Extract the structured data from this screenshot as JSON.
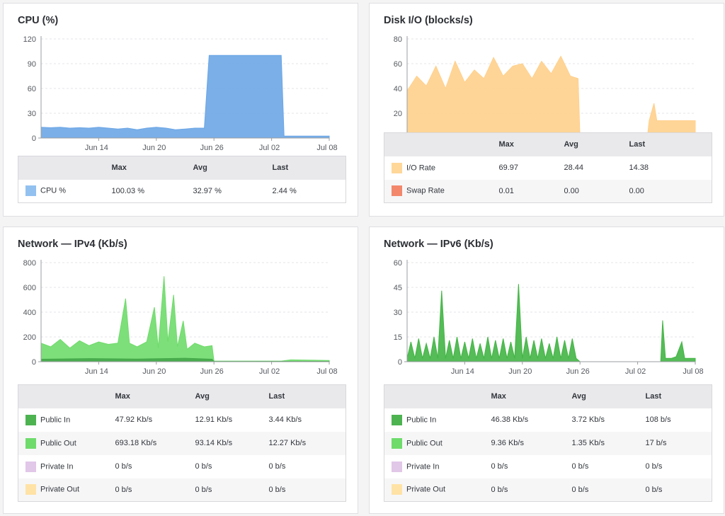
{
  "panels": {
    "cpu": {
      "title": "CPU (%)",
      "table": {
        "headers": [
          "Max",
          "Avg",
          "Last"
        ],
        "rows": [
          {
            "label": "CPU %",
            "color": "#92c1f0",
            "max": "100.03 %",
            "avg": "32.97 %",
            "last": "2.44 %"
          }
        ]
      }
    },
    "disk": {
      "title": "Disk I/O (blocks/s)",
      "table": {
        "headers": [
          "Max",
          "Avg",
          "Last"
        ],
        "rows": [
          {
            "label": "I/O Rate",
            "color": "#ffd799",
            "max": "69.97",
            "avg": "28.44",
            "last": "14.38"
          },
          {
            "label": "Swap Rate",
            "color": "#f2876c",
            "max": "0.01",
            "avg": "0.00",
            "last": "0.00"
          }
        ]
      }
    },
    "ipv4": {
      "title": "Network — IPv4 (Kb/s)",
      "table": {
        "headers": [
          "Max",
          "Avg",
          "Last"
        ],
        "rows": [
          {
            "label": "Public In",
            "color": "#4db351",
            "max": "47.92 Kb/s",
            "avg": "12.91 Kb/s",
            "last": "3.44 Kb/s"
          },
          {
            "label": "Public Out",
            "color": "#6fdb6b",
            "max": "693.18 Kb/s",
            "avg": "93.14 Kb/s",
            "last": "12.27 Kb/s"
          },
          {
            "label": "Private In",
            "color": "#e1c7e8",
            "max": "0 b/s",
            "avg": "0 b/s",
            "last": "0 b/s"
          },
          {
            "label": "Private Out",
            "color": "#ffe3a6",
            "max": "0 b/s",
            "avg": "0 b/s",
            "last": "0 b/s"
          }
        ]
      }
    },
    "ipv6": {
      "title": "Network — IPv6 (Kb/s)",
      "table": {
        "headers": [
          "Max",
          "Avg",
          "Last"
        ],
        "rows": [
          {
            "label": "Public In",
            "color": "#4db351",
            "max": "46.38 Kb/s",
            "avg": "3.72 Kb/s",
            "last": "108 b/s"
          },
          {
            "label": "Public Out",
            "color": "#6fdb6b",
            "max": "9.36 Kb/s",
            "avg": "1.35 Kb/s",
            "last": "17 b/s"
          },
          {
            "label": "Private In",
            "color": "#e1c7e8",
            "max": "0 b/s",
            "avg": "0 b/s",
            "last": "0 b/s"
          },
          {
            "label": "Private Out",
            "color": "#ffe3a6",
            "max": "0 b/s",
            "avg": "0 b/s",
            "last": "0 b/s"
          }
        ]
      }
    }
  },
  "chart_data": [
    {
      "id": "cpu",
      "type": "area",
      "title": "CPU (%)",
      "x_ticks": [
        "Jun 14",
        "Jun 20",
        "Jun 26",
        "Jul 02",
        "Jul 08"
      ],
      "y_ticks": [
        0,
        30,
        60,
        90,
        120
      ],
      "ylim": [
        0,
        120
      ],
      "xlim_days": [
        0,
        30
      ],
      "grid": true,
      "series": [
        {
          "name": "CPU %",
          "color": "#6ba6e6",
          "points": [
            [
              0,
              13
            ],
            [
              1,
              12.5
            ],
            [
              2,
              13
            ],
            [
              3,
              12
            ],
            [
              4,
              12.5
            ],
            [
              5,
              12
            ],
            [
              6,
              13
            ],
            [
              7,
              12
            ],
            [
              8,
              11
            ],
            [
              9,
              12
            ],
            [
              10,
              10
            ],
            [
              11,
              12
            ],
            [
              12,
              13
            ],
            [
              13,
              12
            ],
            [
              14,
              10
            ],
            [
              15,
              11
            ],
            [
              16,
              12
            ],
            [
              17,
              12
            ],
            [
              17.5,
              100
            ],
            [
              25,
              100
            ],
            [
              25.3,
              2.5
            ],
            [
              30,
              2.4
            ]
          ]
        }
      ]
    },
    {
      "id": "disk",
      "type": "area",
      "title": "Disk I/O (blocks/s)",
      "x_ticks": [
        "Jun 14",
        "Jun 20",
        "Jun 26",
        "Jul 02",
        "Jul 08"
      ],
      "y_ticks": [
        0,
        20,
        40,
        60,
        80
      ],
      "ylim": [
        0,
        80
      ],
      "xlim_days": [
        0,
        30
      ],
      "grid": true,
      "series": [
        {
          "name": "I/O Rate",
          "color": "#ffd08c",
          "points": [
            [
              0,
              38
            ],
            [
              1,
              50
            ],
            [
              2,
              42
            ],
            [
              3,
              58
            ],
            [
              4,
              40
            ],
            [
              5,
              62
            ],
            [
              6,
              45
            ],
            [
              7,
              55
            ],
            [
              8,
              48
            ],
            [
              9,
              65
            ],
            [
              10,
              50
            ],
            [
              11,
              58
            ],
            [
              12,
              60
            ],
            [
              13,
              48
            ],
            [
              14,
              62
            ],
            [
              15,
              52
            ],
            [
              16,
              66
            ],
            [
              17,
              50
            ],
            [
              17.8,
              48
            ],
            [
              18,
              0
            ],
            [
              25,
              0
            ],
            [
              25.2,
              14
            ],
            [
              25.7,
              28
            ],
            [
              26,
              14
            ],
            [
              30,
              14
            ]
          ]
        },
        {
          "name": "Swap Rate",
          "color": "#f2876c",
          "points": [
            [
              0,
              0
            ],
            [
              30,
              0
            ]
          ]
        }
      ]
    },
    {
      "id": "ipv4",
      "type": "area",
      "title": "Network — IPv4 (Kb/s)",
      "x_ticks": [
        "Jun 14",
        "Jun 20",
        "Jun 26",
        "Jul 02",
        "Jul 08"
      ],
      "y_ticks": [
        0,
        200,
        400,
        600,
        800
      ],
      "ylim": [
        0,
        800
      ],
      "xlim_days": [
        0,
        30
      ],
      "grid": true,
      "series": [
        {
          "name": "Public Out",
          "color": "#6fdb6b",
          "points": [
            [
              0,
              150
            ],
            [
              1,
              120
            ],
            [
              2,
              180
            ],
            [
              3,
              110
            ],
            [
              4,
              170
            ],
            [
              5,
              130
            ],
            [
              6,
              160
            ],
            [
              7,
              140
            ],
            [
              8,
              150
            ],
            [
              8.8,
              510
            ],
            [
              9.2,
              150
            ],
            [
              10,
              120
            ],
            [
              11,
              160
            ],
            [
              11.8,
              440
            ],
            [
              12.2,
              110
            ],
            [
              12.8,
              690
            ],
            [
              13.2,
              160
            ],
            [
              13.8,
              540
            ],
            [
              14.2,
              120
            ],
            [
              14.8,
              330
            ],
            [
              15.2,
              100
            ],
            [
              16,
              150
            ],
            [
              17,
              120
            ],
            [
              17.8,
              130
            ],
            [
              18,
              5
            ],
            [
              25,
              5
            ],
            [
              26,
              15
            ],
            [
              30,
              10
            ]
          ]
        },
        {
          "name": "Public In",
          "color": "#44a749",
          "points": [
            [
              0,
              20
            ],
            [
              5,
              25
            ],
            [
              10,
              22
            ],
            [
              15,
              28
            ],
            [
              17.8,
              20
            ],
            [
              18,
              2
            ],
            [
              30,
              3
            ]
          ]
        }
      ]
    },
    {
      "id": "ipv6",
      "type": "area",
      "title": "Network — IPv6 (Kb/s)",
      "x_ticks": [
        "Jun 14",
        "Jun 20",
        "Jun 26",
        "Jul 02",
        "Jul 08"
      ],
      "y_ticks": [
        0,
        15,
        30,
        45,
        60
      ],
      "ylim": [
        0,
        60
      ],
      "xlim_days": [
        0,
        30
      ],
      "grid": true,
      "series": [
        {
          "name": "Public In",
          "color": "#43b545",
          "points": [
            [
              0,
              2
            ],
            [
              0.4,
              12
            ],
            [
              0.8,
              2
            ],
            [
              1.2,
              14
            ],
            [
              1.6,
              2
            ],
            [
              2,
              11
            ],
            [
              2.4,
              2
            ],
            [
              2.8,
              15
            ],
            [
              3.2,
              2
            ],
            [
              3.6,
              43
            ],
            [
              4,
              2
            ],
            [
              4.4,
              13
            ],
            [
              4.8,
              2
            ],
            [
              5.2,
              15
            ],
            [
              5.6,
              2
            ],
            [
              6,
              12
            ],
            [
              6.4,
              2
            ],
            [
              6.8,
              14
            ],
            [
              7.2,
              2
            ],
            [
              7.6,
              11
            ],
            [
              8,
              2
            ],
            [
              8.4,
              15
            ],
            [
              8.8,
              2
            ],
            [
              9.2,
              13
            ],
            [
              9.6,
              2
            ],
            [
              10,
              14
            ],
            [
              10.4,
              2
            ],
            [
              10.8,
              12
            ],
            [
              11.2,
              2
            ],
            [
              11.6,
              47
            ],
            [
              12,
              2
            ],
            [
              12.4,
              15
            ],
            [
              12.8,
              2
            ],
            [
              13.2,
              13
            ],
            [
              13.6,
              2
            ],
            [
              14,
              14
            ],
            [
              14.4,
              2
            ],
            [
              14.8,
              11
            ],
            [
              15.2,
              2
            ],
            [
              15.6,
              15
            ],
            [
              16,
              2
            ],
            [
              16.4,
              13
            ],
            [
              16.8,
              2
            ],
            [
              17.2,
              14
            ],
            [
              17.6,
              2
            ],
            [
              18,
              0
            ],
            [
              26.4,
              0
            ],
            [
              26.6,
              25
            ],
            [
              26.9,
              2
            ],
            [
              27.5,
              2
            ],
            [
              28,
              3
            ],
            [
              28.6,
              12
            ],
            [
              28.9,
              2
            ],
            [
              30,
              2
            ]
          ]
        }
      ]
    }
  ]
}
